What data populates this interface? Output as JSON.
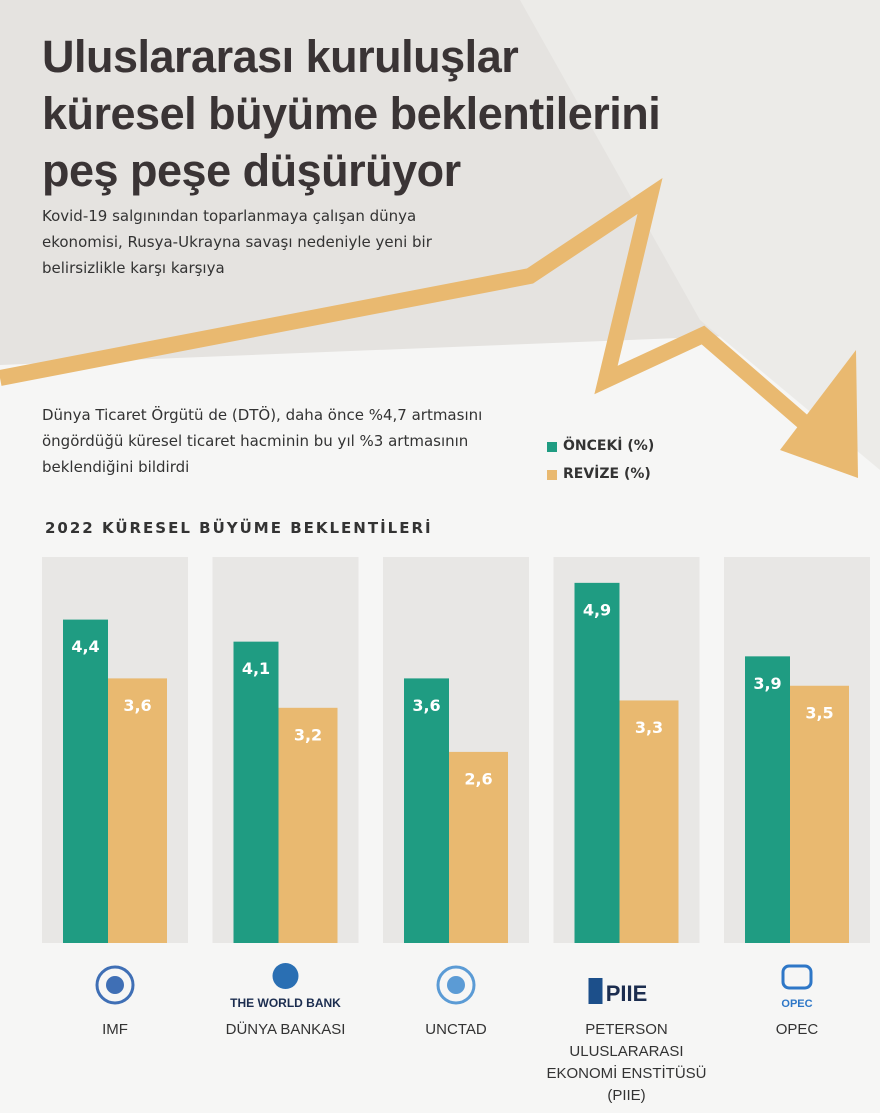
{
  "chart_data": {
    "type": "bar",
    "title": [
      "Uluslararası kuruluşlar",
      "küresel büyüme beklentilerini",
      "peş peşe düşürüyor"
    ],
    "subtitle": "Kovid-19 salgınından toparlanmaya çalışan dünya ekonomisi, Rusya-Ukrayna savaşı nedeniyle yeni bir belirsizlikle karşı karşıya",
    "note": "Dünya Ticaret Örgütü de (DTÖ), daha önce %4,7 artmasını öngördüğü küresel ticaret hacminin bu yıl %3 artmasının beklendiğini bildirdi",
    "chart_title": "2022 KÜRESEL BÜYÜME BEKLENTİLERİ",
    "categories": [
      "IMF",
      "DÜNYA BANKASI",
      "UNCTAD",
      "PETERSON ULUSLARARASI EKONOMİ ENSTİTÜSÜ (PIIE)",
      "OPEC"
    ],
    "logo_texts": [
      "THE WORLD BANK",
      "PIIE",
      "OPEC"
    ],
    "series": [
      {
        "name": "ÖNCEKİ (%)",
        "color": "#1f9c82",
        "values": [
          4.4,
          4.1,
          3.6,
          4.9,
          3.9
        ],
        "value_labels": [
          "4,4",
          "4,1",
          "3,6",
          "4,9",
          "3,9"
        ]
      },
      {
        "name": "REVİZE (%)",
        "color": "#e9b970",
        "values": [
          3.6,
          3.2,
          2.6,
          3.3,
          3.5
        ],
        "value_labels": [
          "3,6",
          "3,2",
          "2,6",
          "3,3",
          "3,5"
        ]
      }
    ]
  }
}
